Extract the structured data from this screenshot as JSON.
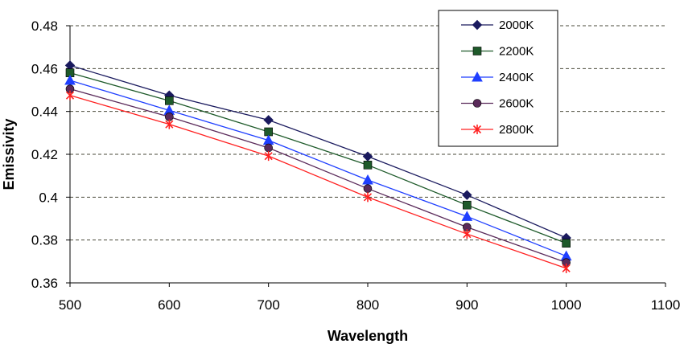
{
  "chart_data": {
    "type": "line",
    "title": "",
    "xlabel": "Wavelength",
    "ylabel": "Emissivity",
    "xlim": [
      500,
      1100
    ],
    "ylim": [
      0.36,
      0.48
    ],
    "x_ticks": [
      500,
      600,
      700,
      800,
      900,
      1000,
      1100
    ],
    "y_ticks": [
      0.36,
      0.38,
      0.4,
      0.42,
      0.44,
      0.46,
      0.48
    ],
    "x_tick_labels": [
      "500",
      "600",
      "700",
      "800",
      "900",
      "1000",
      "1100"
    ],
    "y_tick_labels": [
      "0.36",
      "0.38",
      "0.4",
      "0.42",
      "0.44",
      "0.46",
      "0.48"
    ],
    "grid": "horizontal dashed",
    "legend_position": "top-right",
    "x": [
      500,
      600,
      700,
      800,
      900,
      1000
    ],
    "series": [
      {
        "name": "2000K",
        "color": "#1a1a5e",
        "marker": "diamond",
        "values": [
          0.4615,
          0.4475,
          0.436,
          0.419,
          0.401,
          0.381
        ]
      },
      {
        "name": "2200K",
        "color": "#1e5a2a",
        "marker": "square",
        "values": [
          0.458,
          0.445,
          0.4305,
          0.415,
          0.3963,
          0.3785
        ]
      },
      {
        "name": "2400K",
        "color": "#1f3fff",
        "marker": "triangle",
        "values": [
          0.4545,
          0.4405,
          0.4265,
          0.408,
          0.391,
          0.3725
        ]
      },
      {
        "name": "2600K",
        "color": "#5a2a5a",
        "marker": "circle",
        "values": [
          0.4505,
          0.4375,
          0.423,
          0.404,
          0.386,
          0.3695
        ]
      },
      {
        "name": "2800K",
        "color": "#ff2020",
        "marker": "star",
        "values": [
          0.4475,
          0.434,
          0.4192,
          0.4,
          0.3828,
          0.3668
        ]
      }
    ]
  }
}
